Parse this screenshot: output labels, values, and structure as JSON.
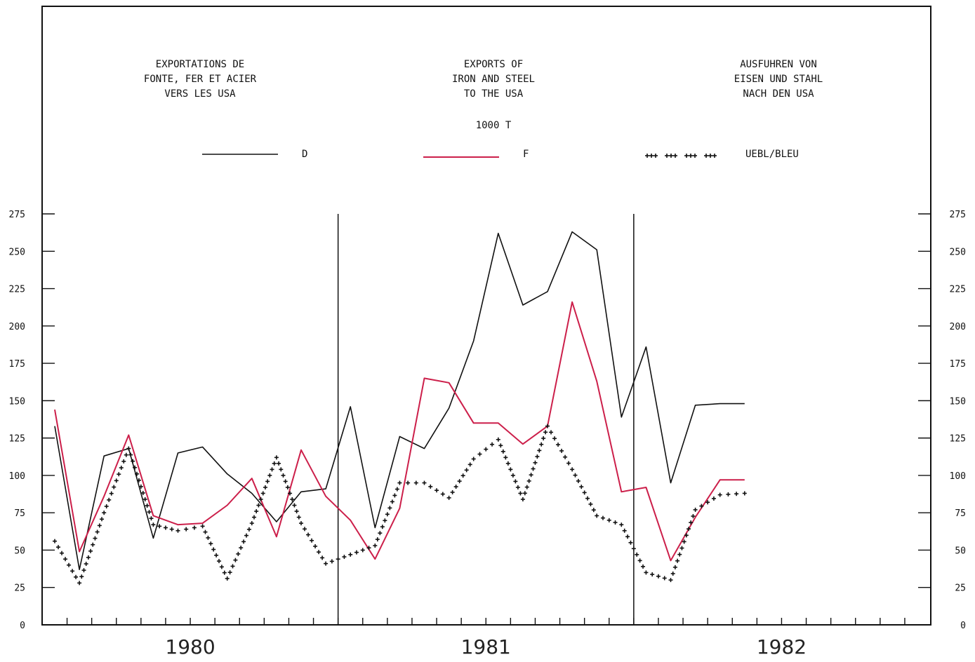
{
  "titles": {
    "fr": [
      "EXPORTATIONS DE",
      "FONTE, FER ET ACIER",
      "VERS LES USA"
    ],
    "en": [
      "EXPORTS OF",
      "IRON AND STEEL",
      "TO THE USA"
    ],
    "de": [
      "AUSFUHREN VON",
      "EISEN UND STAHL",
      "NACH DEN USA"
    ],
    "unit": "1000 T"
  },
  "legend": [
    {
      "label": "D",
      "color": "#111111",
      "style": "solid"
    },
    {
      "label": "F",
      "color": "#cc1f4a",
      "style": "solid"
    },
    {
      "label": "UEBL/BLEU",
      "color": "#111111",
      "style": "crosses"
    }
  ],
  "chart_data": {
    "type": "line",
    "x_label_years": [
      "1980",
      "1981",
      "1982"
    ],
    "x_unit": "month",
    "xlim": [
      1,
      36
    ],
    "ylim": [
      0,
      275
    ],
    "y_ticks": [
      0,
      25,
      50,
      75,
      100,
      125,
      150,
      175,
      200,
      225,
      250,
      275
    ],
    "year_dividers": [
      12.5,
      24.5
    ],
    "grid": false,
    "legend_position": "top",
    "series": [
      {
        "name": "D",
        "color": "#111111",
        "style": "solid",
        "x": [
          1,
          2,
          3,
          4,
          5,
          6,
          7,
          8,
          9,
          10,
          11,
          12,
          13,
          14,
          15,
          16,
          17,
          18,
          19,
          20,
          21,
          22,
          23,
          24,
          25,
          26,
          27,
          28,
          29
        ],
        "y": [
          133,
          37,
          113,
          118,
          58,
          115,
          119,
          101,
          88,
          69,
          89,
          91,
          146,
          65,
          126,
          118,
          145,
          190,
          262,
          214,
          223,
          263,
          251,
          139,
          186,
          95,
          147,
          148,
          148
        ]
      },
      {
        "name": "F",
        "color": "#cc1f4a",
        "style": "solid",
        "x": [
          1,
          2,
          3,
          4,
          5,
          6,
          7,
          8,
          9,
          10,
          11,
          12,
          13,
          14,
          15,
          16,
          17,
          18,
          19,
          20,
          21,
          22,
          23,
          24,
          25,
          26,
          27,
          28,
          29
        ],
        "y": [
          144,
          49,
          86,
          127,
          73,
          67,
          68,
          80,
          98,
          59,
          117,
          86,
          70,
          44,
          78,
          165,
          162,
          135,
          135,
          121,
          133,
          216,
          163,
          89,
          92,
          43,
          72,
          97,
          97
        ]
      },
      {
        "name": "UEBL/BLEU",
        "color": "#111111",
        "style": "crosses",
        "x": [
          1,
          2,
          3,
          4,
          5,
          6,
          7,
          8,
          9,
          10,
          11,
          12,
          13,
          14,
          15,
          16,
          17,
          18,
          19,
          20,
          21,
          22,
          23,
          24,
          25,
          26,
          27,
          28,
          29
        ],
        "y": [
          56,
          28,
          75,
          118,
          67,
          63,
          66,
          31,
          68,
          112,
          68,
          41,
          47,
          53,
          95,
          95,
          85,
          111,
          124,
          84,
          133,
          104,
          73,
          67,
          35,
          30,
          77,
          87,
          88
        ]
      }
    ]
  }
}
